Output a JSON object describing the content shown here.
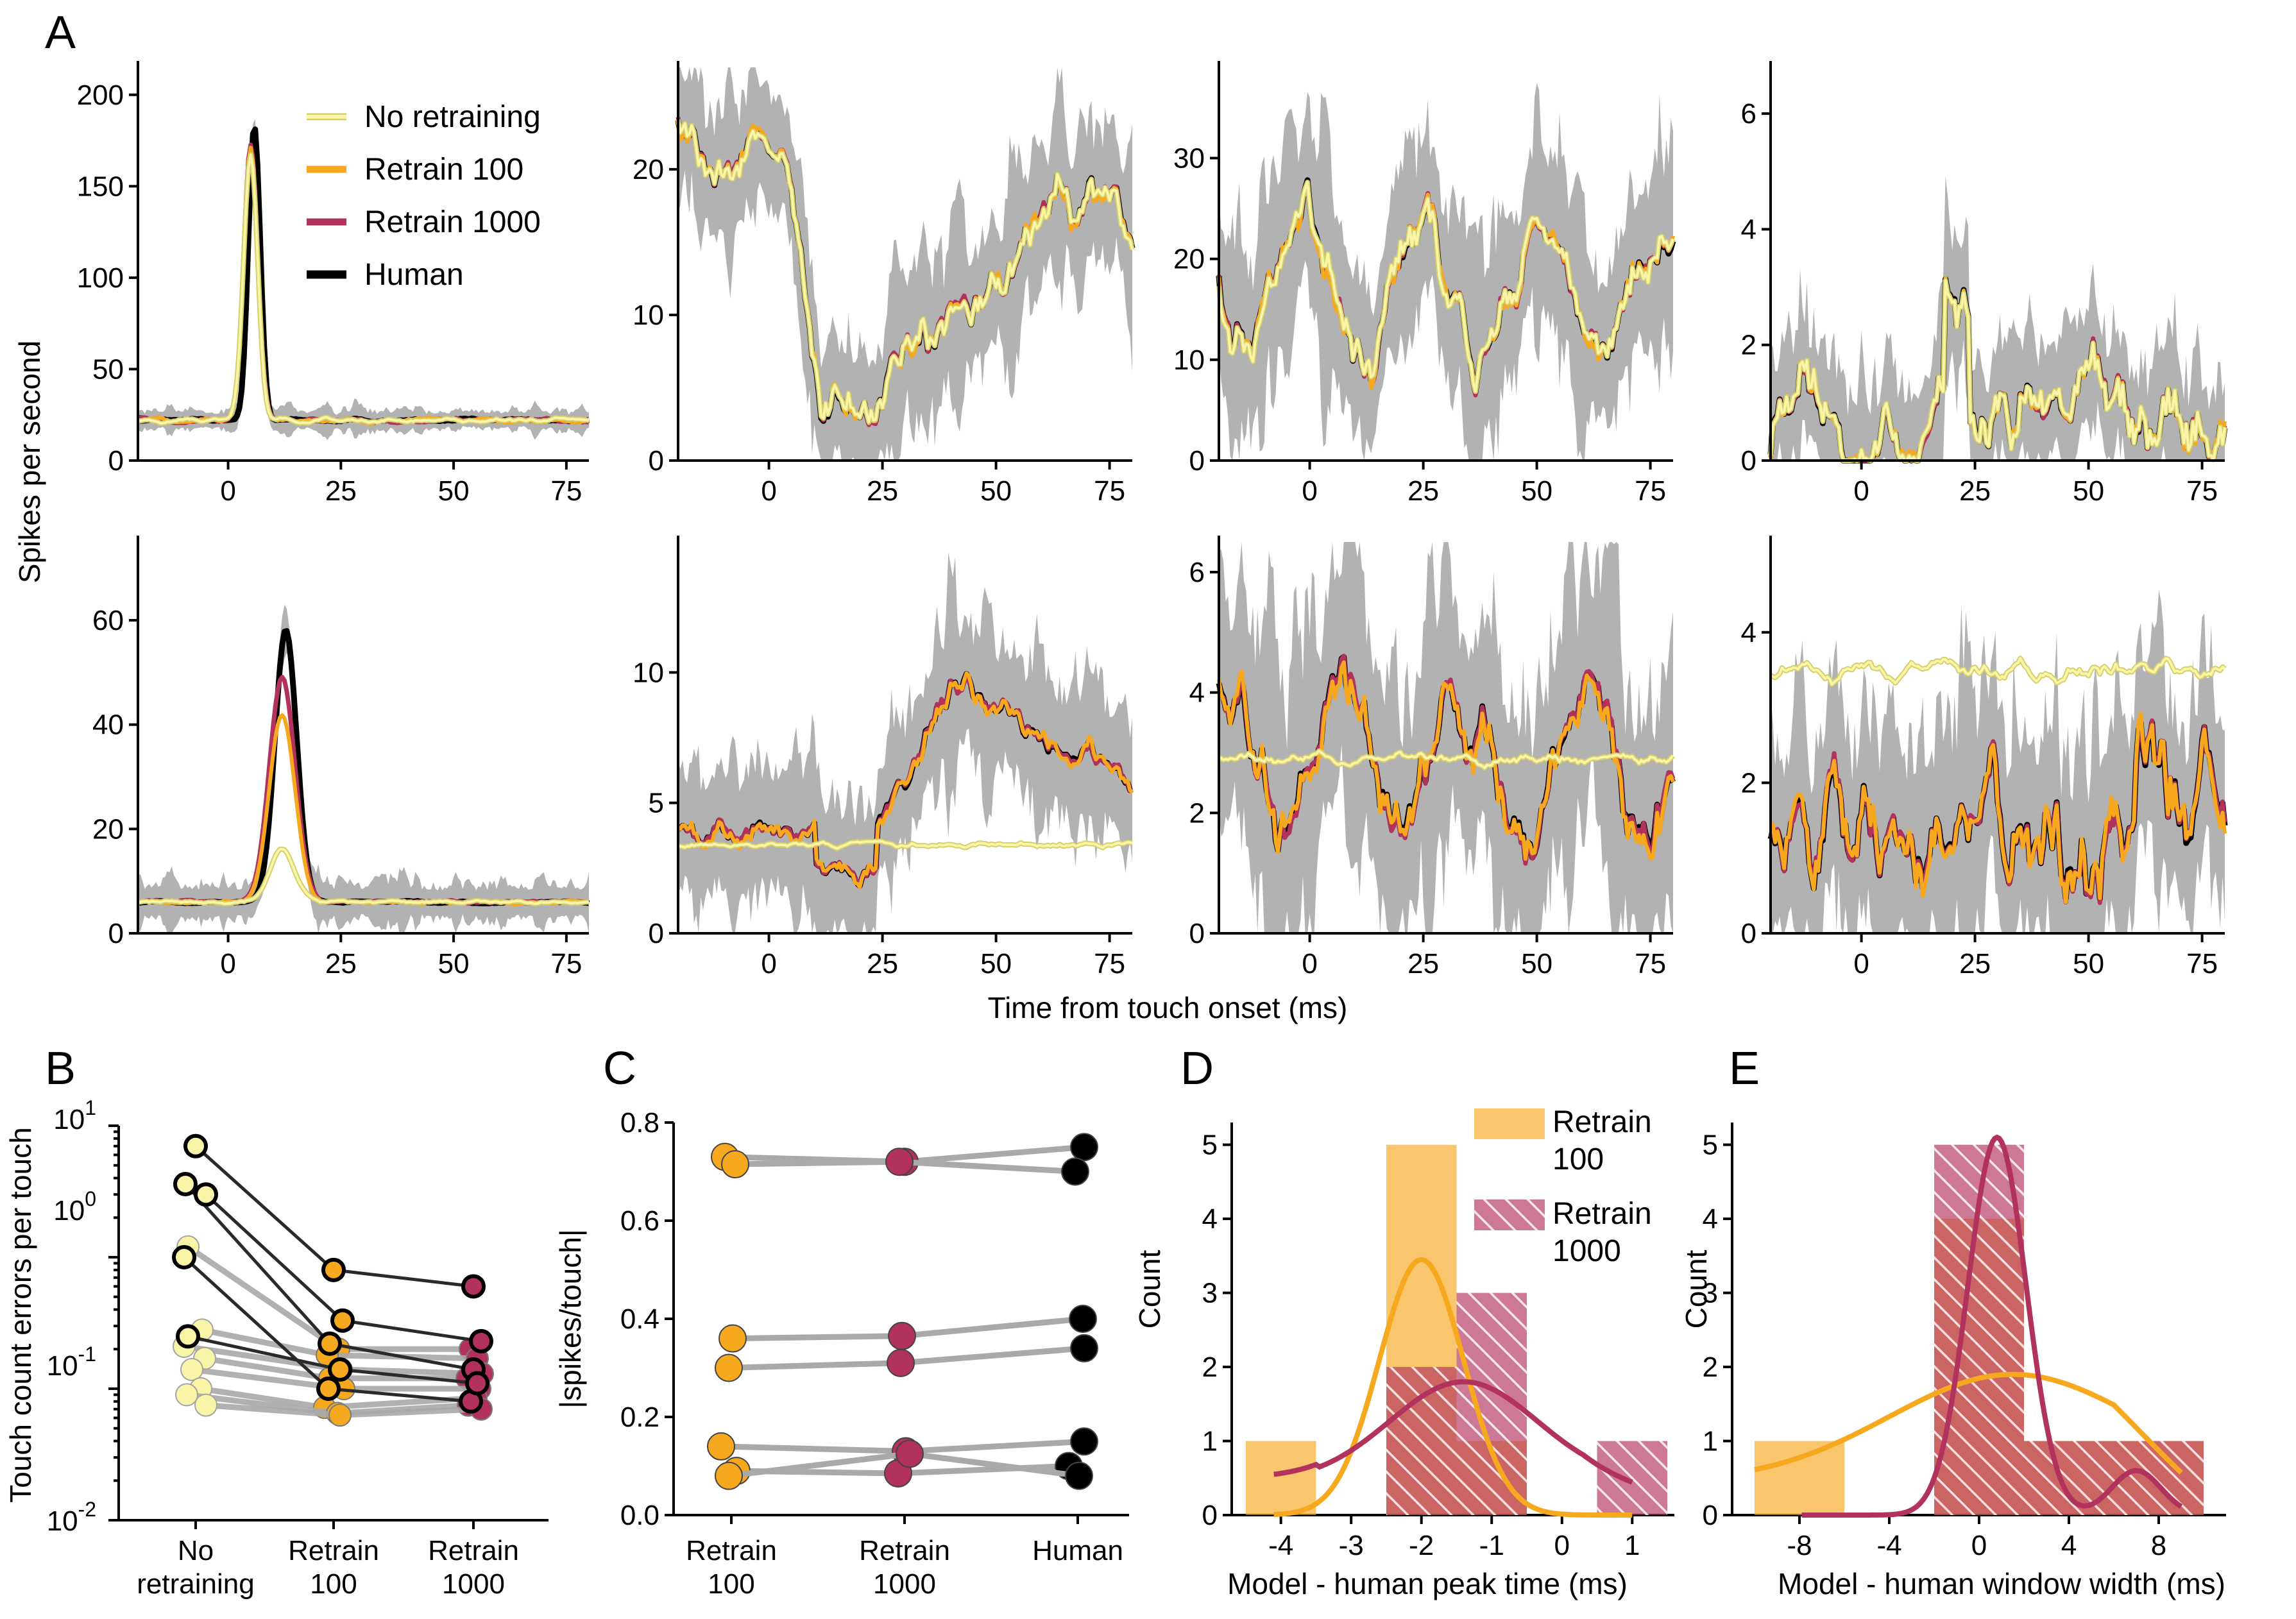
{
  "colors": {
    "no_retraining": "#f8f4a8",
    "no_retraining_edge": "#d6cf6a",
    "retrain_100": "#f6a81e",
    "retrain_1000": "#b2325e",
    "human": "#000000",
    "band": "#b2b2b2",
    "connector": "#a9a9a9",
    "connector_dark": "#2a2a2a"
  },
  "panel_labels": [
    "A",
    "B",
    "C",
    "D",
    "E"
  ],
  "legend_A": [
    "No retraining",
    "Retrain 100",
    "Retrain 1000",
    "Human"
  ],
  "chart_data": [
    {
      "id": "A",
      "type": "line",
      "title": "",
      "xlabel": "Time from touch onset (ms)",
      "ylabel": "Spikes per second",
      "xlim": [
        -20,
        80
      ],
      "xticks": [
        0,
        25,
        50,
        75
      ],
      "series_names": [
        "No retraining",
        "Retrain 100",
        "Retrain 1000",
        "Human"
      ],
      "subplots": [
        {
          "row": 0,
          "col": 0,
          "ylim": [
            0,
            215
          ],
          "yticks": [
            0,
            50,
            100,
            150,
            200
          ],
          "shape": "peak",
          "base": 22,
          "peak_t": 5,
          "width": 2.2,
          "peak": {
            "human": 183,
            "r1000": 172,
            "r100": 171,
            "none": 168
          },
          "band": 6
        },
        {
          "row": 0,
          "col": 1,
          "ylim": [
            0,
            27
          ],
          "yticks": [
            0,
            10,
            20
          ],
          "shape": "dip",
          "base": 21,
          "band": 5
        },
        {
          "row": 0,
          "col": 2,
          "ylim": [
            0,
            39
          ],
          "yticks": [
            0,
            10,
            20,
            30
          ],
          "shape": "wave",
          "base": 17,
          "band": 10
        },
        {
          "row": 0,
          "col": 3,
          "ylim": [
            0,
            6.8
          ],
          "yticks": [
            0,
            2,
            4,
            6
          ],
          "shape": "sparse",
          "base": 0.6,
          "band": 1.2
        },
        {
          "row": 1,
          "col": 0,
          "ylim": [
            0,
            75
          ],
          "yticks": [
            0,
            20,
            40,
            60
          ],
          "shape": "peak",
          "base": 6,
          "peak_t": 12,
          "width": 4,
          "peak": {
            "human": 58,
            "r1000": 49,
            "r100": 42,
            "none": 16
          },
          "band": 4
        },
        {
          "row": 1,
          "col": 1,
          "ylim": [
            0,
            15
          ],
          "yticks": [
            0,
            5,
            10
          ],
          "shape": "rise",
          "base": 4,
          "band": 3
        },
        {
          "row": 1,
          "col": 2,
          "ylim": [
            0,
            6.5
          ],
          "yticks": [
            0,
            2,
            4,
            6
          ],
          "shape": "wave",
          "base": 2.7,
          "band": 2.2
        },
        {
          "row": 1,
          "col": 3,
          "ylim": [
            0,
            5.2
          ],
          "yticks": [
            0,
            2,
            4
          ],
          "shape": "sparse2",
          "base": 1.4,
          "band": 1.6
        }
      ]
    },
    {
      "id": "B",
      "type": "scatter",
      "xlabel": "",
      "ylabel": "Touch count errors per touch",
      "ylim_log10": [
        -2,
        1
      ],
      "ytick_labels": [
        {
          "base": "10",
          "exp": "-2"
        },
        {
          "base": "10",
          "exp": "-1"
        },
        {
          "base": "10",
          "exp": "0"
        },
        {
          "base": "10",
          "exp": "1"
        }
      ],
      "categories": [
        [
          "No",
          "retraining"
        ],
        [
          "Retrain",
          "100"
        ],
        [
          "Retrain",
          "1000"
        ]
      ],
      "highlighted": [
        [
          7.0,
          0.8,
          0.6
        ],
        [
          3.6,
          0.22,
          0.14
        ],
        [
          3.0,
          0.33,
          0.23
        ],
        [
          1.0,
          0.1,
          0.08
        ],
        [
          0.25,
          0.14,
          0.11
        ]
      ],
      "others": [
        [
          1.2,
          0.2,
          0.2
        ],
        [
          0.28,
          0.18,
          0.17
        ],
        [
          0.21,
          0.14,
          0.13
        ],
        [
          0.17,
          0.12,
          0.12
        ],
        [
          0.14,
          0.1,
          0.1
        ],
        [
          0.1,
          0.072,
          0.085
        ],
        [
          0.09,
          0.065,
          0.075
        ],
        [
          0.075,
          0.063,
          0.07
        ]
      ]
    },
    {
      "id": "C",
      "type": "scatter",
      "ylabel": "|spikes/touch|",
      "ylim": [
        0,
        0.8
      ],
      "yticks": [
        "0.0",
        "0.2",
        "0.4",
        "0.6",
        "0.8"
      ],
      "categories": [
        [
          "Retrain",
          "100"
        ],
        [
          "Retrain",
          "1000"
        ],
        [
          "Human"
        ]
      ],
      "rows": [
        [
          0.73,
          0.72,
          0.75
        ],
        [
          0.715,
          0.72,
          0.7
        ],
        [
          0.36,
          0.365,
          0.4
        ],
        [
          0.3,
          0.31,
          0.34
        ],
        [
          0.14,
          0.13,
          0.15
        ],
        [
          0.09,
          0.085,
          0.1
        ],
        [
          0.08,
          0.125,
          0.08
        ]
      ]
    },
    {
      "id": "D",
      "type": "bar",
      "xlabel": "Model - human peak time (ms)",
      "ylabel": "Count",
      "xlim": [
        -4.7,
        1.6
      ],
      "ylim": [
        0,
        5.3
      ],
      "xticks": [
        -4,
        -3,
        -2,
        -1,
        0,
        1
      ],
      "yticks": [
        0,
        1,
        2,
        3,
        4,
        5
      ],
      "bin_width": 1,
      "series": [
        {
          "name": "Retrain 100",
          "centers": [
            -4,
            -2,
            -1
          ],
          "counts": [
            1,
            5,
            1
          ]
        },
        {
          "name": "Retrain 1000",
          "centers": [
            -2,
            -1,
            1
          ],
          "counts": [
            2,
            3,
            1
          ]
        }
      ],
      "kde": [
        {
          "name": "Retrain 100",
          "points": [
            [
              -2,
              3.45,
              0.6
            ]
          ]
        },
        {
          "name": "Retrain 1000",
          "points": [
            [
              -4.1,
              0.5,
              0
            ],
            [
              -1.3,
              1.8,
              1.1
            ],
            [
              1.0,
              0.6,
              0
            ]
          ]
        }
      ],
      "legend": [
        [
          "Retrain",
          "100"
        ],
        [
          "Retrain",
          "1000"
        ]
      ]
    },
    {
      "id": "E",
      "type": "bar",
      "xlabel": "Model - human window width (ms)",
      "ylabel": "Count",
      "xlim": [
        -11,
        11
      ],
      "ylim": [
        0,
        5.3
      ],
      "xticks": [
        -8,
        -4,
        0,
        4,
        8
      ],
      "xtick_labels": [
        "-8",
        "-4",
        "0",
        "4",
        "8"
      ],
      "yticks": [
        0,
        1,
        2,
        3,
        4,
        5
      ],
      "bins": [
        [
          -10,
          -6
        ],
        [
          -2,
          2
        ],
        [
          2,
          10
        ]
      ],
      "series": [
        {
          "name": "Retrain 100",
          "counts": [
            1,
            4,
            1
          ]
        },
        {
          "name": "Retrain 1000",
          "counts": [
            0,
            5,
            1
          ]
        }
      ]
    }
  ]
}
